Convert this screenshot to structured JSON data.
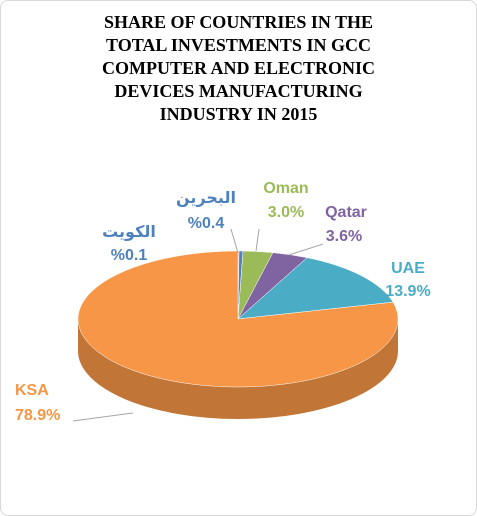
{
  "chart_data": {
    "type": "pie",
    "title": [
      "SHARE OF COUNTRIES IN THE",
      "TOTAL INVESTMENTS IN GCC",
      "COMPUTER AND ELECTRONIC",
      "DEVICES   MANUFACTURING",
      "INDUSTRY IN 2015"
    ],
    "categories": [
      "الكويت",
      "البحرين",
      "Oman",
      "Qatar",
      "UAE",
      "KSA"
    ],
    "values": [
      0.1,
      0.4,
      3.0,
      3.6,
      13.9,
      78.9
    ],
    "value_labels": [
      "%0.1",
      "%0.4",
      "3.0%",
      "3.6%",
      "13.9%",
      "78.9%"
    ],
    "colors": [
      "#c0504d",
      "#4f81bd",
      "#9bbb59",
      "#8064a2",
      "#4bacc6",
      "#f79646"
    ],
    "label_colors": [
      "#4f81bd",
      "#4f81bd",
      "#9bbb59",
      "#8064a2",
      "#4bacc6",
      "#f79646"
    ]
  }
}
